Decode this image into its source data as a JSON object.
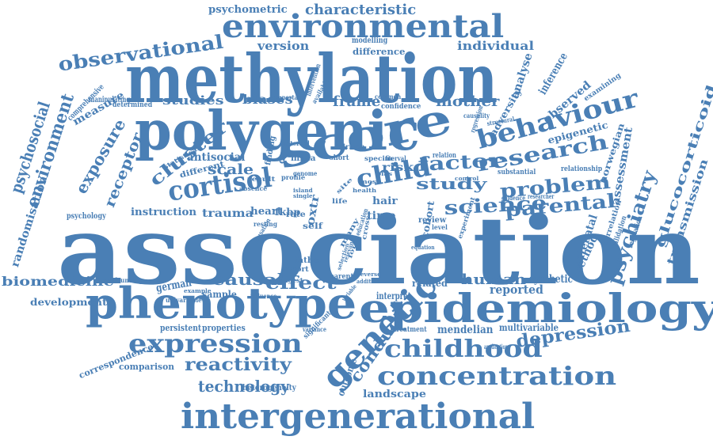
{
  "word_color": "#4a7fb5",
  "words": [
    "association",
    "methylation",
    "polygenic",
    "phenotype",
    "epidemiology",
    "intergenerational",
    "environmental",
    "score",
    "cortisol",
    "genetic",
    "behaviour",
    "concentration",
    "expression",
    "childhood",
    "child",
    "research",
    "problem",
    "science",
    "parental",
    "factor",
    "observational",
    "environment",
    "psychosocial",
    "psychiatry",
    "exposure",
    "cluster",
    "receptor",
    "depression",
    "reactivity",
    "technology",
    "causal",
    "effect",
    "human",
    "conduct",
    "glucocorticoid",
    "transmission",
    "assessment",
    "randomisation",
    "biomedicine",
    "mother",
    "frame",
    "study",
    "studies",
    "biases",
    "scale",
    "characteristic",
    "psychometric",
    "version",
    "individual",
    "analyse",
    "inference",
    "observed",
    "epigenetic",
    "measure",
    "mendelian",
    "landscape",
    "antisocial",
    "instruction",
    "trauma",
    "heart",
    "fkbp",
    "time",
    "hair",
    "risk",
    "reported",
    "synthetic",
    "multivariable",
    "comparison",
    "development",
    "german",
    "sample",
    "persistent",
    "properties",
    "correspondence",
    "antenatal",
    "method",
    "cohort",
    "outcome",
    "related",
    "interpret",
    "heterogeneity",
    "norwegian",
    "adversity",
    "modelling",
    "difference",
    "comprehensive",
    "manipulating",
    "determined",
    "important",
    "intervention",
    "common",
    "confidence",
    "regression",
    "examining",
    "relationship",
    "substantial",
    "interval",
    "relation",
    "evidence",
    "researcher",
    "correlation",
    "validation",
    "regulation",
    "application",
    "treatment",
    "significant",
    "variance",
    "influence",
    "univariable",
    "confounding",
    "strongest",
    "parent",
    "father",
    "report",
    "self",
    "rate",
    "many",
    "causation",
    "resting",
    "absence",
    "result",
    "finding",
    "data",
    "maternal",
    "driven",
    "short",
    "specific",
    "mrna",
    "genome",
    "review",
    "experiment",
    "level",
    "causality",
    "psychology",
    "different",
    "statistical",
    "available",
    "structural",
    "control",
    "most",
    "health",
    "education",
    "life",
    "site",
    "island",
    "single",
    "profile",
    "bias",
    "cross",
    "equation",
    "relevant",
    "form",
    "selection",
    "variable",
    "addition",
    "reverse",
    "example",
    "oxtr"
  ]
}
